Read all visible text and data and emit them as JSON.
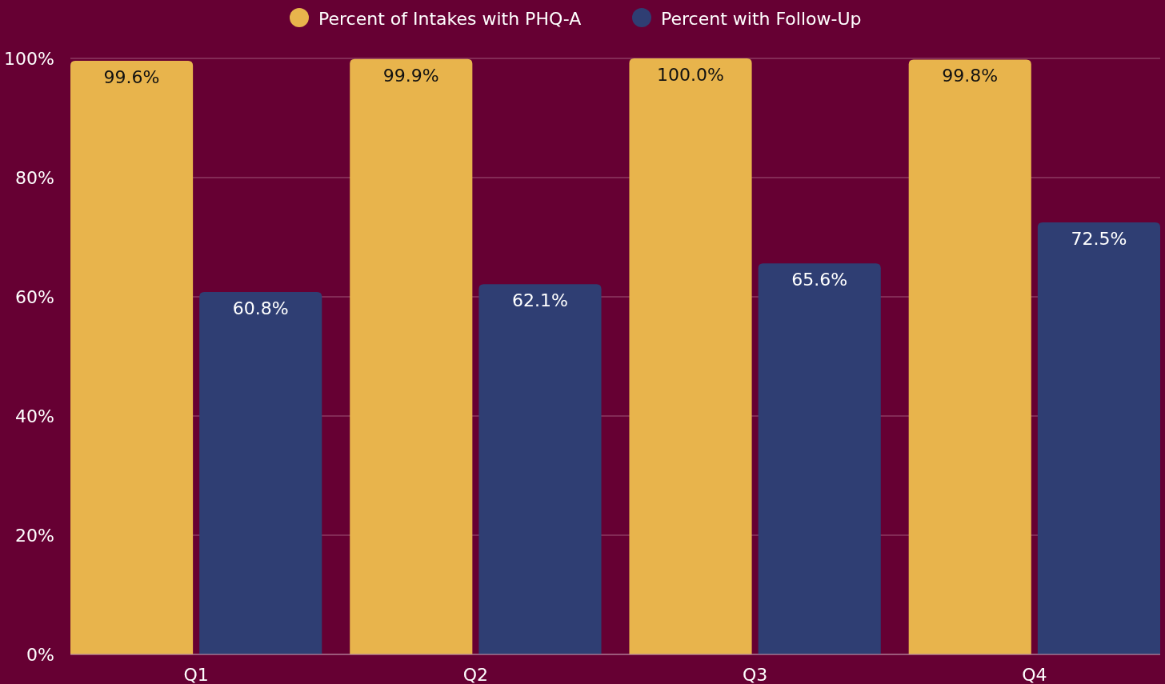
{
  "chart_data": {
    "type": "bar",
    "categories": [
      "Q1",
      "Q2",
      "Q3",
      "Q4"
    ],
    "series": [
      {
        "name": "Percent of Intakes with PHQ-A",
        "color": "#e8b44c",
        "values": [
          99.6,
          99.9,
          100.0,
          99.8
        ],
        "value_labels": [
          "99.6%",
          "99.9%",
          "100.0%",
          "99.8%"
        ]
      },
      {
        "name": "Percent with Follow-Up",
        "color": "#2f3e73",
        "values": [
          60.8,
          62.1,
          65.6,
          72.5
        ],
        "value_labels": [
          "60.8%",
          "62.1%",
          "65.6%",
          "72.5%"
        ]
      }
    ],
    "ylim": [
      0,
      100
    ],
    "yticks": [
      {
        "value": 0,
        "label": "0%"
      },
      {
        "value": 20,
        "label": "20%"
      },
      {
        "value": 40,
        "label": "40%"
      },
      {
        "value": 60,
        "label": "60%"
      },
      {
        "value": 80,
        "label": "80%"
      },
      {
        "value": 100,
        "label": "100%"
      }
    ],
    "grid": "y",
    "legend": "top"
  }
}
